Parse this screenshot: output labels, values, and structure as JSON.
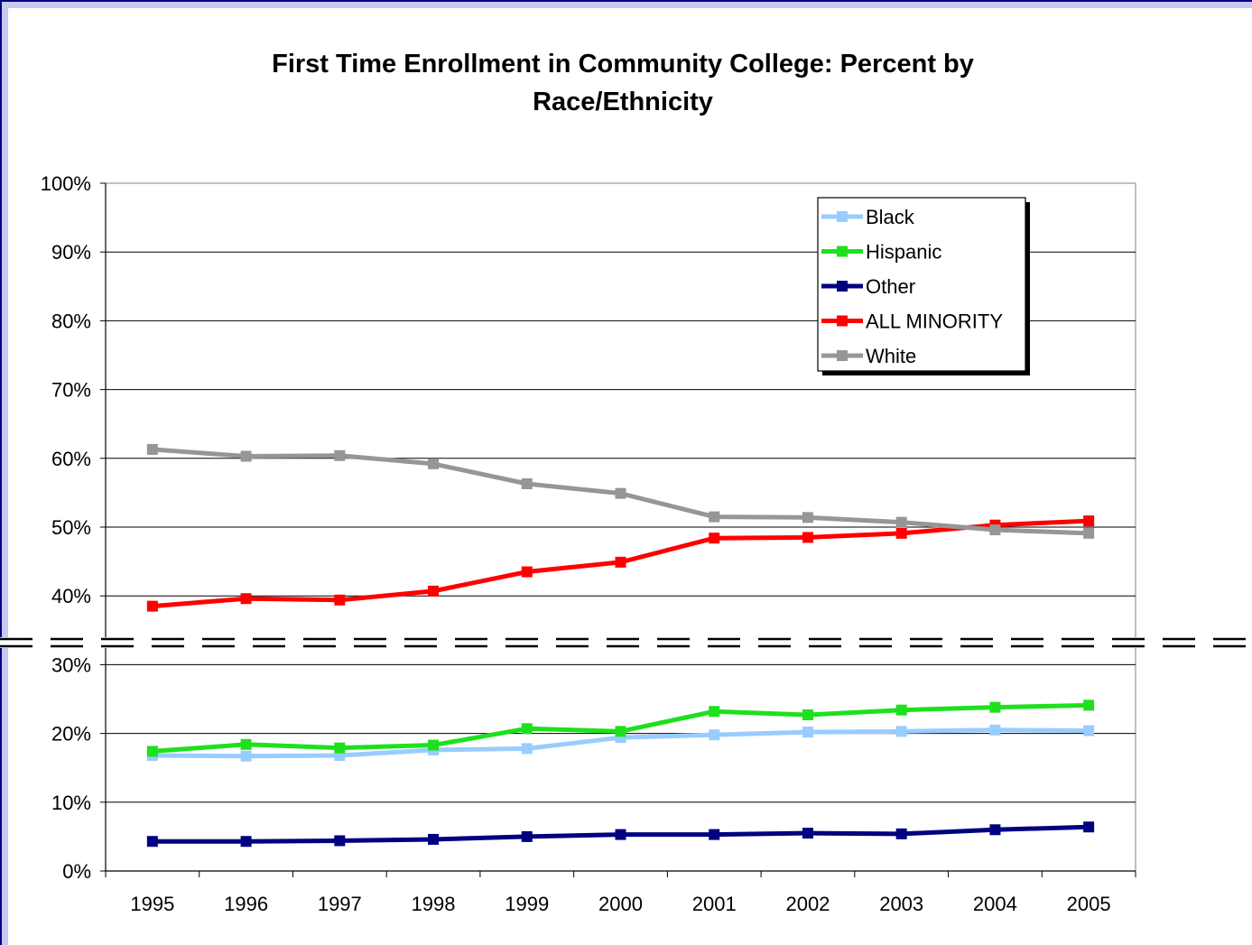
{
  "chart_data": {
    "type": "line",
    "title_lines": [
      "First Time Enrollment in Community College: Percent by",
      "Race/Ethnicity"
    ],
    "x": [
      "1995",
      "1996",
      "1997",
      "1998",
      "1999",
      "2000",
      "2001",
      "2002",
      "2003",
      "2004",
      "2005"
    ],
    "y_ticks": [
      "0%",
      "10%",
      "20%",
      "30%",
      "40%",
      "50%",
      "60%",
      "70%",
      "80%",
      "90%",
      "100%"
    ],
    "ylim": [
      0,
      100
    ],
    "grid": true,
    "axis_break": "between 30% and 40%",
    "legend_position": "top-right",
    "series": [
      {
        "name": "Black",
        "color": "#99ccff",
        "values": [
          16.8,
          16.7,
          16.8,
          17.6,
          17.8,
          19.4,
          19.8,
          20.2,
          20.3,
          20.5,
          20.4
        ]
      },
      {
        "name": "Hispanic",
        "color": "#1ee01e",
        "values": [
          17.4,
          18.4,
          17.9,
          18.3,
          20.7,
          20.3,
          23.2,
          22.7,
          23.4,
          23.8,
          24.1
        ]
      },
      {
        "name": "Other",
        "color": "#000080",
        "values": [
          4.3,
          4.3,
          4.4,
          4.6,
          5.0,
          5.3,
          5.3,
          5.5,
          5.4,
          6.0,
          6.4
        ]
      },
      {
        "name": "ALL MINORITY",
        "color": "#ff0000",
        "values": [
          38.5,
          39.6,
          39.4,
          40.7,
          43.5,
          44.9,
          48.4,
          48.5,
          49.1,
          50.3,
          50.9
        ]
      },
      {
        "name": "White",
        "color": "#969696",
        "values": [
          61.3,
          60.3,
          60.4,
          59.2,
          56.3,
          54.9,
          51.5,
          51.4,
          50.7,
          49.6,
          49.1
        ]
      }
    ]
  }
}
